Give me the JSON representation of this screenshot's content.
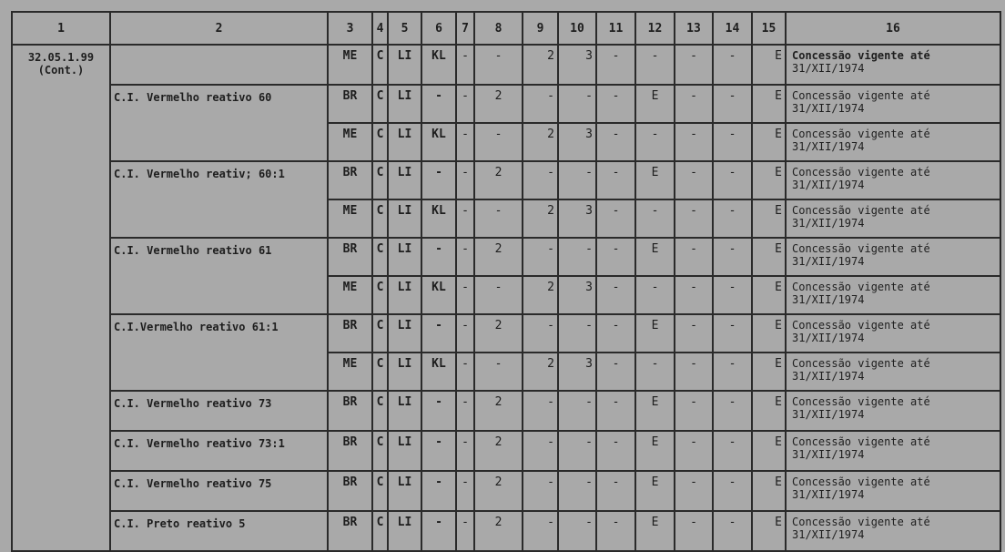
{
  "headers": [
    "1",
    "2",
    "3",
    "4",
    "5",
    "6",
    "7",
    "8",
    "9",
    "10",
    "11",
    "12",
    "13",
    "14",
    "15",
    "16"
  ],
  "code": "32.05.1.99",
  "code_note": "(Cont.)",
  "groups": [
    {
      "name": "",
      "rows": [
        [
          "ME",
          "C",
          "LI",
          "KL",
          "-",
          "-",
          "2",
          "3",
          "-",
          "-",
          "-",
          "-",
          "E",
          "Concessão vigente até",
          "31/XII/1974"
        ]
      ]
    },
    {
      "name": "C.I. Vermelho reativo 60",
      "rows": [
        [
          "BR",
          "C",
          "LI",
          "-",
          "-",
          "2",
          "-",
          "-",
          "-",
          "E",
          "-",
          "-",
          "E",
          "Concessão vigente até",
          "31/XII/1974"
        ],
        [
          "ME",
          "C",
          "LI",
          "KL",
          "-",
          "-",
          "2",
          "3",
          "-",
          "-",
          "-",
          "-",
          "E",
          "Concessão vigente até",
          "31/XII/1974"
        ]
      ]
    },
    {
      "name": "C.I. Vermelho reativ; 60:1",
      "rows": [
        [
          "BR",
          "C",
          "LI",
          "-",
          "-",
          "2",
          "-",
          "-",
          "-",
          "E",
          "-",
          "-",
          "E",
          "Concessão vigente até",
          "31/XII/1974"
        ],
        [
          "ME",
          "C",
          "LI",
          "KL",
          "-",
          "-",
          "2",
          "3",
          "-",
          "-",
          "-",
          "-",
          "E",
          "Concessão vigente até",
          "31/XII/1974"
        ]
      ]
    },
    {
      "name": "C.I. Vermelho reativo 61",
      "rows": [
        [
          "BR",
          "C",
          "LI",
          "-",
          "-",
          "2",
          "-",
          "-",
          "-",
          "E",
          "-",
          "-",
          "E",
          "Concessão vigente até",
          "31/XII/1974"
        ],
        [
          "ME",
          "C",
          "LI",
          "KL",
          "-",
          "-",
          "2",
          "3",
          "-",
          "-",
          "-",
          "-",
          "E",
          "Concessão vigente até",
          "31/XII/1974"
        ]
      ]
    },
    {
      "name": "C.I.Vermelho reativo 61:1",
      "rows": [
        [
          "BR",
          "C",
          "LI",
          "-",
          "-",
          "2",
          "-",
          "-",
          "-",
          "E",
          "-",
          "-",
          "E",
          "Concessão vigente até",
          "31/XII/1974"
        ],
        [
          "ME",
          "C",
          "LI",
          "KL",
          "-",
          "-",
          "2",
          "3",
          "-",
          "-",
          "-",
          "-",
          "E",
          "Concessão vigente até",
          "31/XII/1974"
        ]
      ]
    },
    {
      "name": "C.I. Vermelho reativo 73",
      "rows": [
        [
          "BR",
          "C",
          "LI",
          "-",
          "-",
          "2",
          "-",
          "-",
          "-",
          "E",
          "-",
          "-",
          "E",
          "Concessão vigente até",
          "31/XII/1974"
        ]
      ]
    },
    {
      "name": "C.I. Vermelho reativo 73:1",
      "rows": [
        [
          "BR",
          "C",
          "LI",
          "-",
          "-",
          "2",
          "-",
          "-",
          "-",
          "E",
          "-",
          "-",
          "E",
          "Concessão vigente até",
          "31/XII/1974"
        ]
      ]
    },
    {
      "name": "C.I. Vermelho reativo 75",
      "rows": [
        [
          "BR",
          "C",
          "LI",
          "-",
          "-",
          "2",
          "-",
          "-",
          "-",
          "E",
          "-",
          "-",
          "E",
          "Concessão vigente até",
          "31/XII/1974"
        ]
      ]
    },
    {
      "name": "C.I. Preto reativo 5",
      "rows": [
        [
          "BR",
          "C",
          "LI",
          "-",
          "-",
          "2",
          "-",
          "-",
          "-",
          "E",
          "-",
          "-",
          "E",
          "Concessão vigente até",
          "31/XII/1974"
        ]
      ]
    }
  ]
}
